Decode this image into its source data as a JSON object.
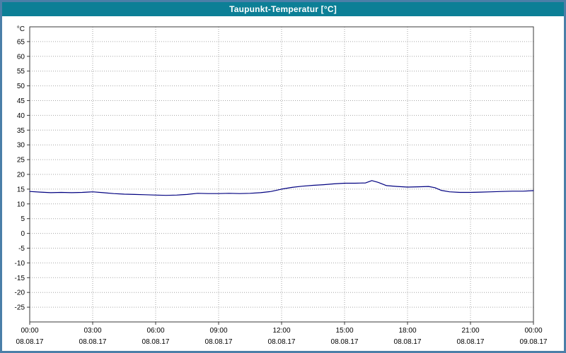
{
  "window": {
    "title": "Taupunkt-Temperatur [°C]"
  },
  "colors": {
    "frame": "#4b7fa8",
    "titlebar": "#0c7f96",
    "title_text": "#ffffff",
    "plot_border": "#3a3a3a",
    "grid": "#a6a6a6",
    "tick": "#3a3a3a",
    "line": "#000080",
    "label_text": "#000000"
  },
  "chart_data": {
    "type": "line",
    "title": "Taupunkt-Temperatur [°C]",
    "ylabel": "°C",
    "xlabel": "",
    "grid": true,
    "legend": "none",
    "ylim": [
      -30,
      70
    ],
    "xlim_hours": [
      0,
      24
    ],
    "y_ticks": [
      65,
      60,
      55,
      50,
      45,
      40,
      35,
      30,
      25,
      20,
      15,
      10,
      5,
      0,
      -5,
      -10,
      -15,
      -20,
      -25
    ],
    "x_ticks": [
      {
        "time": "00:00",
        "date": "08.08.17",
        "hour": 0
      },
      {
        "time": "03:00",
        "date": "08.08.17",
        "hour": 3
      },
      {
        "time": "06:00",
        "date": "08.08.17",
        "hour": 6
      },
      {
        "time": "09:00",
        "date": "08.08.17",
        "hour": 9
      },
      {
        "time": "12:00",
        "date": "08.08.17",
        "hour": 12
      },
      {
        "time": "15:00",
        "date": "08.08.17",
        "hour": 15
      },
      {
        "time": "18:00",
        "date": "08.08.17",
        "hour": 18
      },
      {
        "time": "21:00",
        "date": "08.08.17",
        "hour": 21
      },
      {
        "time": "00:00",
        "date": "09.08.17",
        "hour": 24
      }
    ],
    "series": [
      {
        "name": "Taupunkt-Temperatur",
        "color": "#000080",
        "x": [
          0,
          0.5,
          1,
          1.5,
          2,
          2.5,
          3,
          3.5,
          4,
          4.5,
          5,
          5.5,
          6,
          6.5,
          7,
          7.5,
          8,
          8.5,
          9,
          9.5,
          10,
          10.5,
          11,
          11.5,
          12,
          12.5,
          13,
          13.5,
          14,
          14.5,
          15,
          15.5,
          16,
          16.3,
          16.6,
          17,
          17.5,
          18,
          18.5,
          19,
          19.3,
          19.6,
          20,
          20.5,
          21,
          21.5,
          22,
          22.5,
          23,
          23.5,
          24
        ],
        "values": [
          14.2,
          14.0,
          13.8,
          13.9,
          13.8,
          13.9,
          14.1,
          13.8,
          13.5,
          13.3,
          13.2,
          13.1,
          13.0,
          12.9,
          13.0,
          13.2,
          13.6,
          13.5,
          13.5,
          13.6,
          13.5,
          13.6,
          13.8,
          14.2,
          15.0,
          15.6,
          16.0,
          16.3,
          16.5,
          16.8,
          17.0,
          17.0,
          17.1,
          17.9,
          17.3,
          16.2,
          15.9,
          15.7,
          15.8,
          15.9,
          15.5,
          14.6,
          14.1,
          13.9,
          13.9,
          14.0,
          14.1,
          14.2,
          14.3,
          14.3,
          14.5
        ]
      }
    ]
  }
}
